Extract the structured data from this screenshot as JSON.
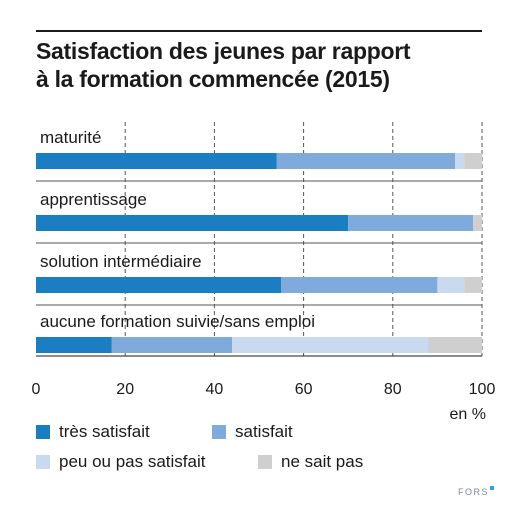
{
  "title": {
    "line1": "Satisfaction des jeunes par rapport",
    "line2": "à la formation commencée (2015)"
  },
  "logo": "FORS",
  "chart_data": {
    "type": "bar",
    "orientation": "horizontal",
    "stacked": true,
    "title": "Satisfaction des jeunes par rapport à la formation commencée (2015)",
    "categories": [
      "maturité",
      "apprentissage",
      "solution intermédiaire",
      "aucune formation suivie/sans emploi"
    ],
    "series": [
      {
        "name": "très satisfait",
        "color": "#1b7ec2",
        "values": [
          54,
          70,
          55,
          17
        ]
      },
      {
        "name": "satisfait",
        "color": "#7faadc",
        "values": [
          40,
          28,
          35,
          27
        ]
      },
      {
        "name": "peu ou pas satisfait",
        "color": "#c9d9f0",
        "values": [
          2,
          0,
          6,
          44
        ]
      },
      {
        "name": "ne sait pas",
        "color": "#cfcfcf",
        "values": [
          4,
          2,
          4,
          12
        ]
      }
    ],
    "xlim": [
      0,
      100
    ],
    "xticks": [
      "0",
      "20",
      "40",
      "60",
      "80",
      "100"
    ],
    "xlabel": "en %",
    "grid": "vertical dashed",
    "legend_position": "bottom"
  }
}
